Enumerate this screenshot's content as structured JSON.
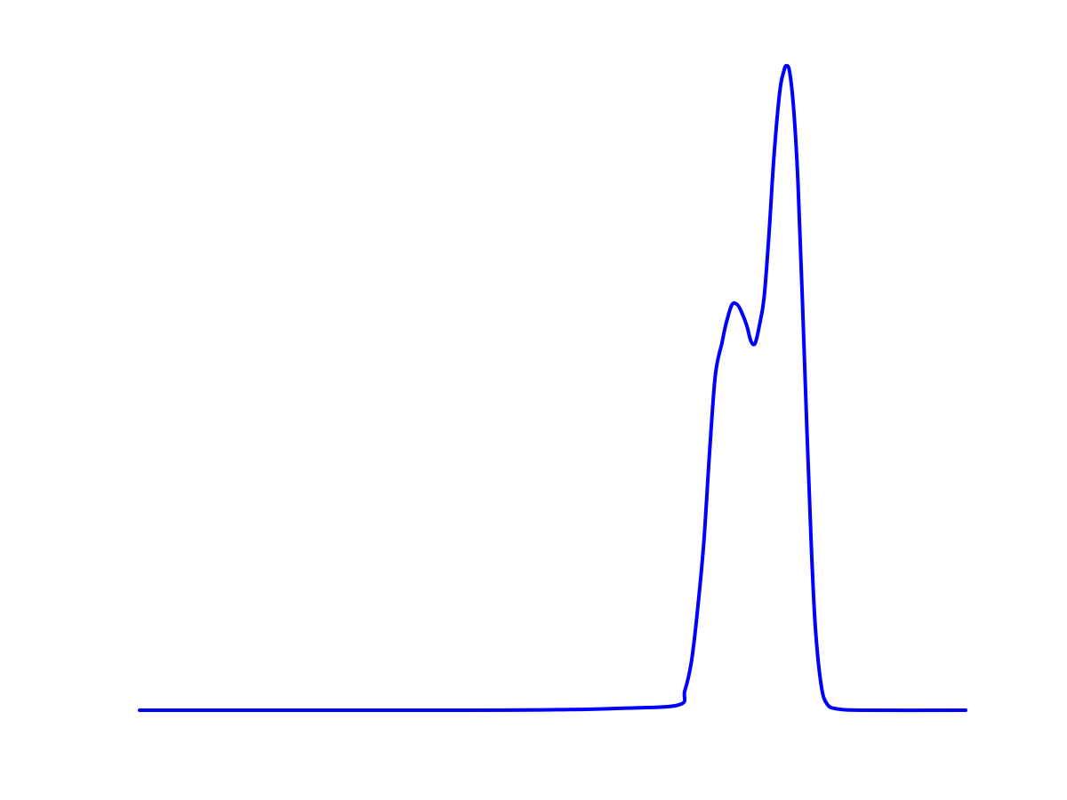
{
  "chart_data": {
    "type": "line",
    "title": "",
    "xlabel": "",
    "ylabel": "",
    "xlim": [
      0,
      1
    ],
    "ylim": [
      0,
      1
    ],
    "grid": false,
    "axes_visible": false,
    "legend": "none",
    "series": [
      {
        "color": "#0000ff",
        "points": [
          [
            0.0,
            0.0
          ],
          [
            0.4,
            0.0
          ],
          [
            0.52,
            0.001
          ],
          [
            0.58,
            0.003
          ],
          [
            0.652,
            0.008
          ],
          [
            0.66,
            0.03
          ],
          [
            0.668,
            0.075
          ],
          [
            0.675,
            0.15
          ],
          [
            0.683,
            0.26
          ],
          [
            0.69,
            0.4
          ],
          [
            0.697,
            0.52
          ],
          [
            0.705,
            0.57
          ],
          [
            0.71,
            0.6
          ],
          [
            0.717,
            0.629
          ],
          [
            0.723,
            0.63
          ],
          [
            0.728,
            0.62
          ],
          [
            0.735,
            0.597
          ],
          [
            0.74,
            0.573
          ],
          [
            0.745,
            0.569
          ],
          [
            0.75,
            0.595
          ],
          [
            0.756,
            0.64
          ],
          [
            0.762,
            0.74
          ],
          [
            0.768,
            0.86
          ],
          [
            0.775,
            0.96
          ],
          [
            0.78,
            0.992
          ],
          [
            0.783,
            1.0
          ],
          [
            0.787,
            0.99
          ],
          [
            0.792,
            0.93
          ],
          [
            0.797,
            0.82
          ],
          [
            0.802,
            0.65
          ],
          [
            0.808,
            0.43
          ],
          [
            0.813,
            0.26
          ],
          [
            0.818,
            0.13
          ],
          [
            0.825,
            0.04
          ],
          [
            0.832,
            0.01
          ],
          [
            0.845,
            0.002
          ],
          [
            0.88,
            0.0
          ],
          [
            1.0,
            0.0
          ]
        ]
      }
    ]
  }
}
